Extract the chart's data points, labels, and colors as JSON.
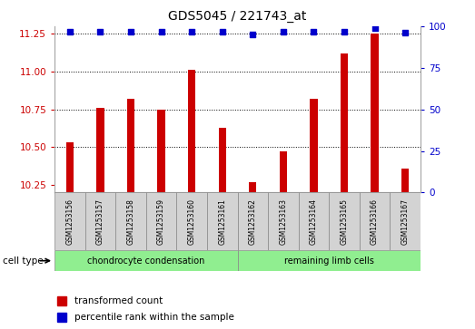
{
  "title": "GDS5045 / 221743_at",
  "samples": [
    "GSM1253156",
    "GSM1253157",
    "GSM1253158",
    "GSM1253159",
    "GSM1253160",
    "GSM1253161",
    "GSM1253162",
    "GSM1253163",
    "GSM1253164",
    "GSM1253165",
    "GSM1253166",
    "GSM1253167"
  ],
  "transformed_counts": [
    10.53,
    10.76,
    10.82,
    10.75,
    11.01,
    10.63,
    10.27,
    10.47,
    10.82,
    11.12,
    11.25,
    10.36
  ],
  "percentile_ranks": [
    97,
    97,
    97,
    97,
    97,
    97,
    95,
    97,
    97,
    97,
    99,
    96
  ],
  "ylim_left": [
    10.2,
    11.3
  ],
  "ylim_right": [
    0,
    100
  ],
  "yticks_left": [
    10.25,
    10.5,
    10.75,
    11.0,
    11.25
  ],
  "yticks_right": [
    0,
    25,
    50,
    75,
    100
  ],
  "bar_color": "#cc0000",
  "dot_color": "#0000cc",
  "grid_color": "#000000",
  "bg_color": "#ffffff",
  "sample_box_color": "#d3d3d3",
  "group1_samples": 6,
  "group2_samples": 6,
  "group1_label": "chondrocyte condensation",
  "group2_label": "remaining limb cells",
  "group_color": "#90ee90",
  "cell_type_label": "cell type",
  "legend_items": [
    {
      "label": "transformed count",
      "color": "#cc0000"
    },
    {
      "label": "percentile rank within the sample",
      "color": "#0000cc"
    }
  ],
  "left_tick_color": "#cc0000",
  "right_tick_color": "#0000cc",
  "baseline": 10.2,
  "bar_width": 0.25
}
